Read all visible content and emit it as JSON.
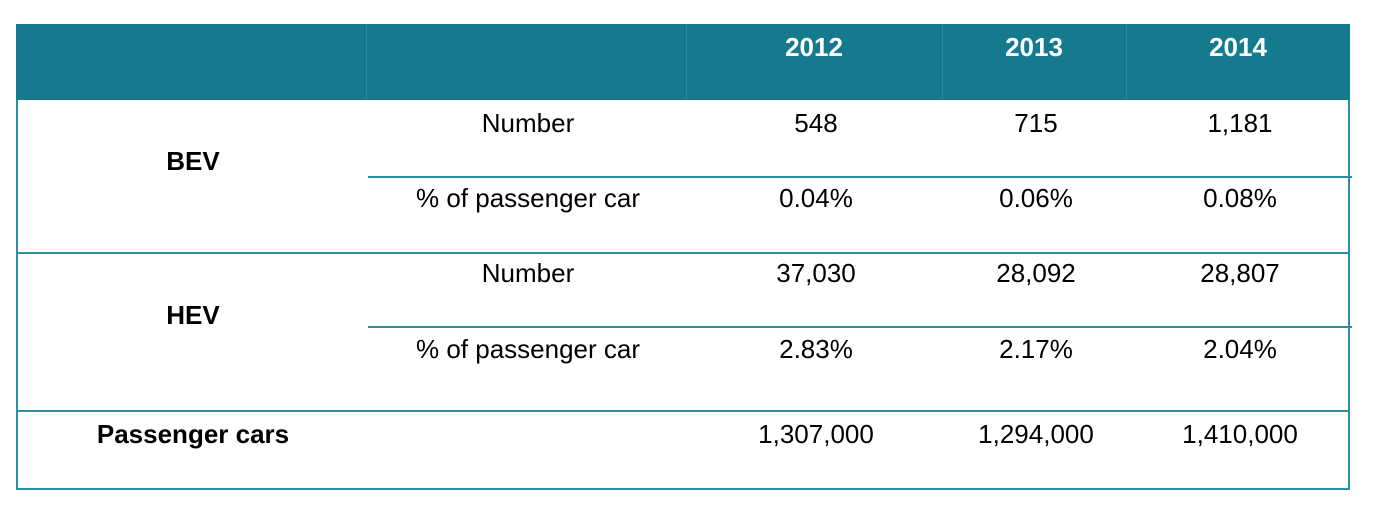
{
  "header": {
    "years": [
      "2012",
      "2013",
      "2014"
    ]
  },
  "rows": {
    "bev": {
      "group": "BEV",
      "number_label": "Number",
      "number_values": [
        "548",
        "715",
        "1,181"
      ],
      "share_label": "% of passenger car",
      "share_values": [
        "0.04%",
        "0.06%",
        "0.08%"
      ]
    },
    "hev": {
      "group": "HEV",
      "number_label": "Number",
      "number_values": [
        "37,030",
        "28,092",
        "28,807"
      ],
      "share_label": "% of passenger car",
      "share_values": [
        "2.83%",
        "2.17%",
        "2.04%"
      ]
    },
    "total": {
      "label": "Passenger cars",
      "values": [
        "1,307,000",
        "1,294,000",
        "1,410,000"
      ]
    }
  },
  "colors": {
    "header_bg": "#167a8f",
    "border": "#2e8ea3",
    "header_text": "#ffffff"
  }
}
